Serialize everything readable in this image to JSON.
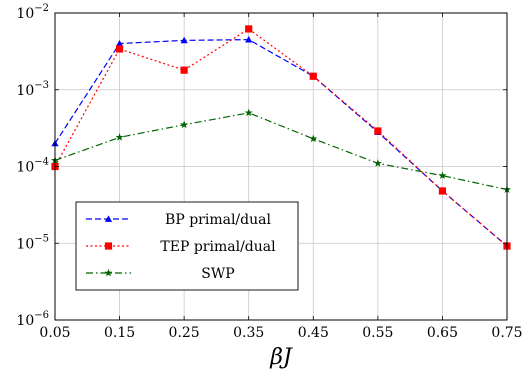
{
  "chart_data": {
    "type": "line",
    "xlabel": "βJ",
    "ylabel": "",
    "title": "",
    "y_scale": "log",
    "xlim": [
      0.05,
      0.75
    ],
    "ylim": [
      1e-06,
      0.01
    ],
    "grid": true,
    "legend_position": "bottom-left",
    "x_ticks": [
      "0.05",
      "0.15",
      "0.25",
      "0.35",
      "0.45",
      "0.55",
      "0.65",
      "0.75"
    ],
    "y_ticks": [
      {
        "base": "10",
        "exp": "−6",
        "value": 1e-06
      },
      {
        "base": "10",
        "exp": "−5",
        "value": 1e-05
      },
      {
        "base": "10",
        "exp": "−4",
        "value": 0.0001
      },
      {
        "base": "10",
        "exp": "−3",
        "value": 0.001
      },
      {
        "base": "10",
        "exp": "−2",
        "value": 0.01
      }
    ],
    "x": [
      0.05,
      0.15,
      0.25,
      0.35,
      0.45,
      0.55,
      0.65,
      0.75
    ],
    "series": [
      {
        "name": "BP primal/dual",
        "color": "#0000ff",
        "dash": "6,3",
        "marker": "triangle",
        "values": [
          0.0002,
          0.004,
          0.0044,
          0.0045,
          0.0015,
          0.00028,
          4.8e-05,
          9.2e-06
        ]
      },
      {
        "name": "TEP primal/dual",
        "color": "#ff0000",
        "dash": "2,2.5",
        "marker": "square",
        "values": [
          0.0001,
          0.0034,
          0.0018,
          0.0062,
          0.0015,
          0.00029,
          4.8e-05,
          9.2e-06
        ]
      },
      {
        "name": "SWP",
        "color": "#006400",
        "dash": "7,3,1.5,3",
        "marker": "star",
        "values": [
          0.00012,
          0.00024,
          0.00035,
          0.0005,
          0.00023,
          0.00011,
          7.6e-05,
          5e-05
        ]
      }
    ]
  }
}
